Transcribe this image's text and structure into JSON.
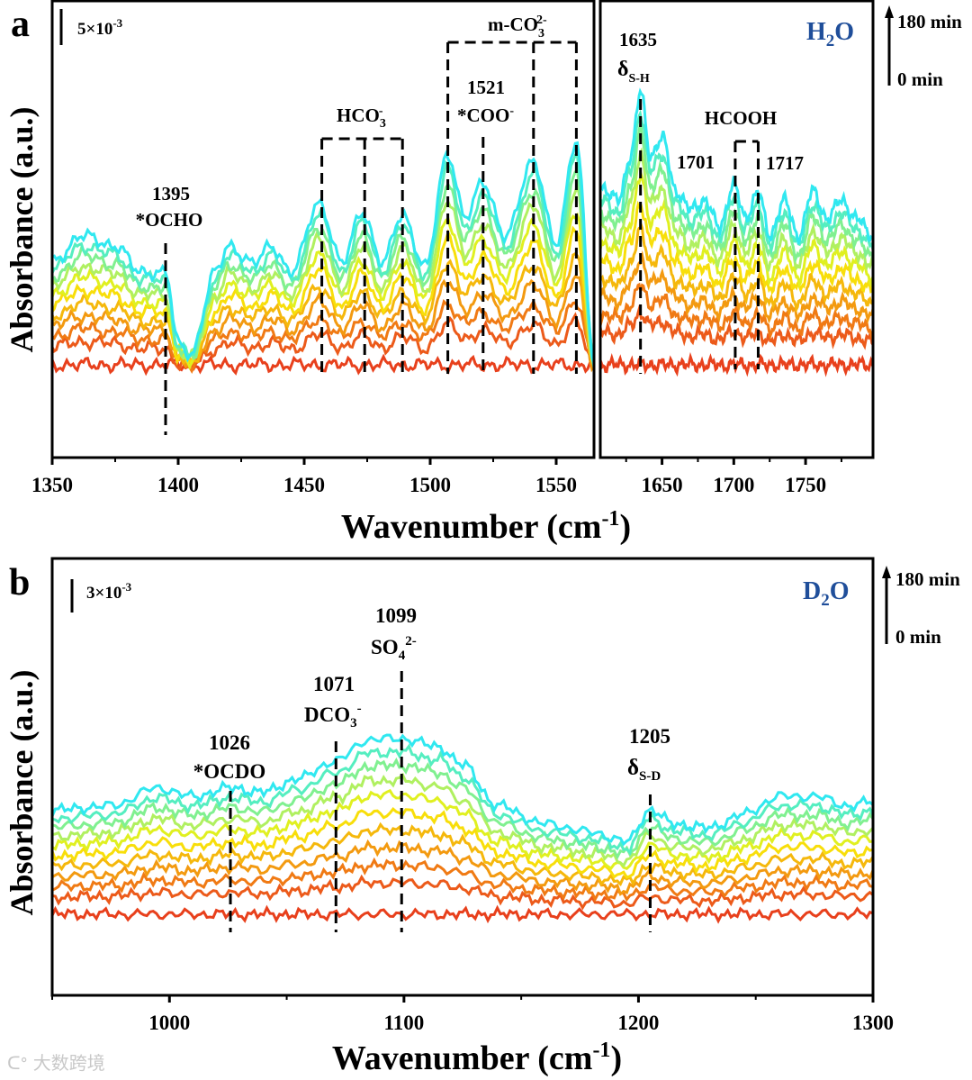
{
  "panel_labels": {
    "a": "a",
    "b": "b"
  },
  "watermark": "大数跨境",
  "chart_data": [
    {
      "type": "line",
      "panel": "a",
      "solvent": {
        "main": "H",
        "sub": "2",
        "rest": "O"
      },
      "xlabel": {
        "main": "Wavenumber (cm",
        "sup": "-1",
        "end": ")"
      },
      "ylabel": "Absorbance (a.u.)",
      "scale_bar": {
        "main": "5×10",
        "sup": "-3",
        "value": 5
      },
      "legend": {
        "top": "180 min",
        "bottom": "0 min"
      },
      "x_segments": [
        {
          "xlim": [
            1350,
            1565
          ],
          "ticks": [
            "1350",
            "1400",
            "1450",
            "1500",
            "1550"
          ],
          "tick_values": [
            1350,
            1400,
            1450,
            1500,
            1550
          ],
          "minor": [
            1375,
            1425,
            1475,
            1525
          ]
        },
        {
          "xlim": [
            1607,
            1797
          ],
          "ticks": [
            "1650",
            "1700",
            "1750"
          ],
          "tick_values": [
            1650,
            1700,
            1750
          ],
          "minor": [
            1625,
            1675,
            1725,
            1775
          ]
        }
      ],
      "ylim": [
        -12.9,
        50.6
      ],
      "profile_units": "×10^-3 a.u., relative to 0 min baseline (180 min curve)",
      "profile": [
        {
          "x": [
            1350,
            1362,
            1375,
            1385,
            1395,
            1400,
            1405,
            1415,
            1420,
            1430,
            1437,
            1445,
            1456,
            1465,
            1473,
            1481,
            1489,
            1498,
            1507,
            1514,
            1521,
            1530,
            1541,
            1550,
            1558,
            1565
          ],
          "y": [
            10.9,
            14.4,
            13.1,
            9.4,
            9.4,
            -0.6,
            -1.9,
            9.4,
            13.1,
            10.6,
            13.1,
            9.4,
            19.1,
            10.6,
            17.9,
            10.6,
            17.5,
            10.0,
            25.9,
            16.9,
            21.9,
            14.4,
            25.0,
            13.1,
            27.9,
            -3.0
          ]
        },
        {
          "x": [
            1607,
            1620,
            1628,
            1635,
            1642,
            1650,
            1660,
            1670,
            1680,
            1690,
            1700,
            1708,
            1717,
            1725,
            1735,
            1745,
            1755,
            1765,
            1775,
            1785,
            1797
          ],
          "y": [
            21.3,
            19.4,
            25.6,
            34.4,
            25.6,
            28.1,
            20.6,
            18.1,
            19.4,
            15.6,
            21.6,
            16.9,
            20.6,
            14.4,
            19.4,
            14.4,
            20.6,
            16.9,
            19.4,
            16.9,
            14.4
          ]
        }
      ],
      "series_fraction": [
        0,
        0.2,
        0.3,
        0.4,
        0.5,
        0.6,
        0.7,
        0.78,
        0.86,
        0.93,
        1.0
      ],
      "series_colors": [
        "#e8401c",
        "#ec5a1a",
        "#f07a14",
        "#f39a10",
        "#f5b80c",
        "#f8de0a",
        "#e0f020",
        "#b0f060",
        "#80f090",
        "#55eec0",
        "#30e8f0"
      ],
      "annotations": {
        "ocho": {
          "wavenumber": 1395,
          "num": "1395",
          "label": "*OCHO"
        },
        "hco3": {
          "lines": [
            1457,
            1474,
            1489
          ],
          "main": "HCO",
          "sub": "3",
          "sup": "-"
        },
        "mco3": {
          "lines": [
            1507,
            1541,
            1558
          ],
          "main": "m-CO",
          "sub": "3",
          "sup": "2-"
        },
        "coo": {
          "wavenumber": 1521,
          "num": "1521",
          "main": "*COO",
          "sup": "-"
        },
        "sh": {
          "wavenumber": 1635,
          "num": "1635",
          "main": "δ",
          "sub": "S-H"
        },
        "hcooh": {
          "lines": [
            1701,
            1717
          ],
          "label": "HCOOH",
          "num1": "1701",
          "num2": "1717"
        }
      }
    },
    {
      "type": "line",
      "panel": "b",
      "solvent": {
        "main": "D",
        "sub": "2",
        "rest": "O"
      },
      "xlabel": {
        "main": "Wavenumber (cm",
        "sup": "-1",
        "end": ")"
      },
      "ylabel": "Absorbance (a.u.)",
      "scale_bar": {
        "main": "3×10",
        "sup": "-3",
        "value": 3
      },
      "legend": {
        "top": "180 min",
        "bottom": "0 min"
      },
      "xlim": [
        950,
        1300
      ],
      "ticks": [
        "1000",
        "1100",
        "1200",
        "1300"
      ],
      "tick_values": [
        1000,
        1100,
        1200,
        1300
      ],
      "minor": [
        950,
        1050,
        1150,
        1250
      ],
      "ylim": [
        -7.7,
        33.8
      ],
      "profile": {
        "x": [
          950,
          975,
          995,
          1010,
          1026,
          1040,
          1055,
          1071,
          1085,
          1099,
          1115,
          1125,
          1140,
          1160,
          1180,
          1195,
          1205,
          1215,
          1230,
          1245,
          1260,
          1275,
          1290,
          1300
        ],
        "y": [
          6.4,
          6.8,
          8.5,
          7.7,
          8.5,
          8.1,
          9.4,
          11.1,
          13.1,
          13.2,
          12.4,
          10.7,
          6.8,
          5.1,
          4.3,
          3.4,
          6.4,
          5.1,
          4.7,
          6.0,
          7.7,
          7.7,
          6.8,
          7.2
        ]
      },
      "series_fraction": [
        0,
        0.2,
        0.3,
        0.4,
        0.5,
        0.6,
        0.7,
        0.78,
        0.86,
        0.93,
        1.0
      ],
      "series_colors": [
        "#e8401c",
        "#ec5a1a",
        "#f07a14",
        "#f39a10",
        "#f5b80c",
        "#f8de0a",
        "#e0f020",
        "#b0f060",
        "#80f090",
        "#55eec0",
        "#30e8f0"
      ],
      "annotations": {
        "ocdo": {
          "wavenumber": 1026,
          "num": "1026",
          "label": "*OCDO"
        },
        "dco3": {
          "wavenumber": 1071,
          "num": "1071",
          "main": "DCO",
          "sub": "3",
          "sup": "-"
        },
        "so4": {
          "wavenumber": 1099,
          "num": "1099",
          "main": "SO",
          "sub": "4",
          "sup": "2-"
        },
        "sd": {
          "wavenumber": 1205,
          "num": "1205",
          "main": "δ",
          "sub": "S-D"
        }
      }
    }
  ]
}
